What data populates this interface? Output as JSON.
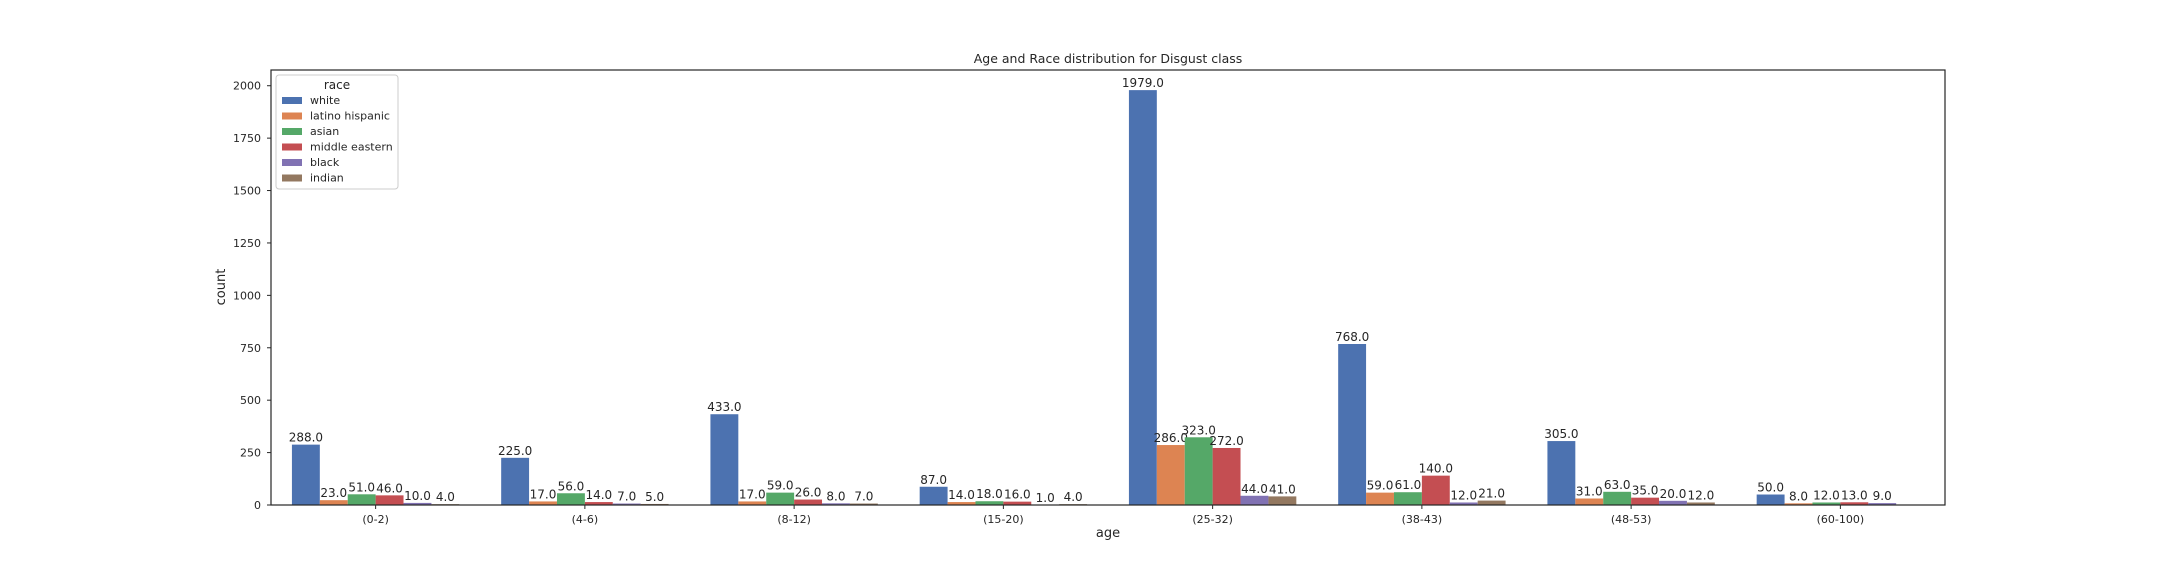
{
  "chart_data": {
    "type": "bar",
    "title": "Age and Race distribution for Disgust class",
    "xlabel": "age",
    "ylabel": "count",
    "ylim": [
      0,
      2075
    ],
    "yticks": [
      0,
      250,
      500,
      750,
      1000,
      1250,
      1500,
      1750,
      2000
    ],
    "grid": false,
    "legend": {
      "title": "race",
      "placement": "top-left"
    },
    "categories": [
      "(0-2)",
      "(4-6)",
      "(8-12)",
      "(15-20)",
      "(25-32)",
      "(38-43)",
      "(48-53)",
      "(60-100)"
    ],
    "series": [
      {
        "name": "white",
        "color": "#4c72b0",
        "values": [
          288,
          225,
          433,
          87,
          1979,
          768,
          305,
          50
        ],
        "labels": [
          "288.0",
          "225.0",
          "433.0",
          "87.0",
          "1979.0",
          "768.0",
          "305.0",
          "50.0"
        ]
      },
      {
        "name": "latino hispanic",
        "color": "#dd8452",
        "values": [
          23,
          17,
          17,
          14,
          286,
          59,
          31,
          8
        ],
        "labels": [
          "23.0",
          "17.0",
          "17.0",
          "14.0",
          "286.0",
          "59.0",
          "31.0",
          "8.0"
        ]
      },
      {
        "name": "asian",
        "color": "#55a868",
        "values": [
          51,
          56,
          59,
          18,
          323,
          61,
          63,
          12
        ],
        "labels": [
          "51.0",
          "56.0",
          "59.0",
          "18.0",
          "323.0",
          "61.0",
          "63.0",
          "12.0"
        ]
      },
      {
        "name": "middle eastern",
        "color": "#c44e52",
        "values": [
          46,
          14,
          26,
          16,
          272,
          140,
          35,
          13
        ],
        "labels": [
          "46.0",
          "14.0",
          "26.0",
          "16.0",
          "272.0",
          "140.0",
          "35.0",
          "13.0"
        ]
      },
      {
        "name": "black",
        "color": "#8172b3",
        "values": [
          10,
          7,
          8,
          1,
          44,
          12,
          20,
          9
        ],
        "labels": [
          "10.0",
          "7.0",
          "8.0",
          "1.0",
          "44.0",
          "12.0",
          "20.0",
          "9.0"
        ]
      },
      {
        "name": "indian",
        "color": "#937860",
        "values": [
          4,
          5,
          7,
          4,
          41,
          21,
          12,
          null
        ],
        "labels": [
          "4.0",
          "5.0",
          "7.0",
          "4.0",
          "41.0",
          "21.0",
          "12.0",
          null
        ]
      }
    ]
  }
}
